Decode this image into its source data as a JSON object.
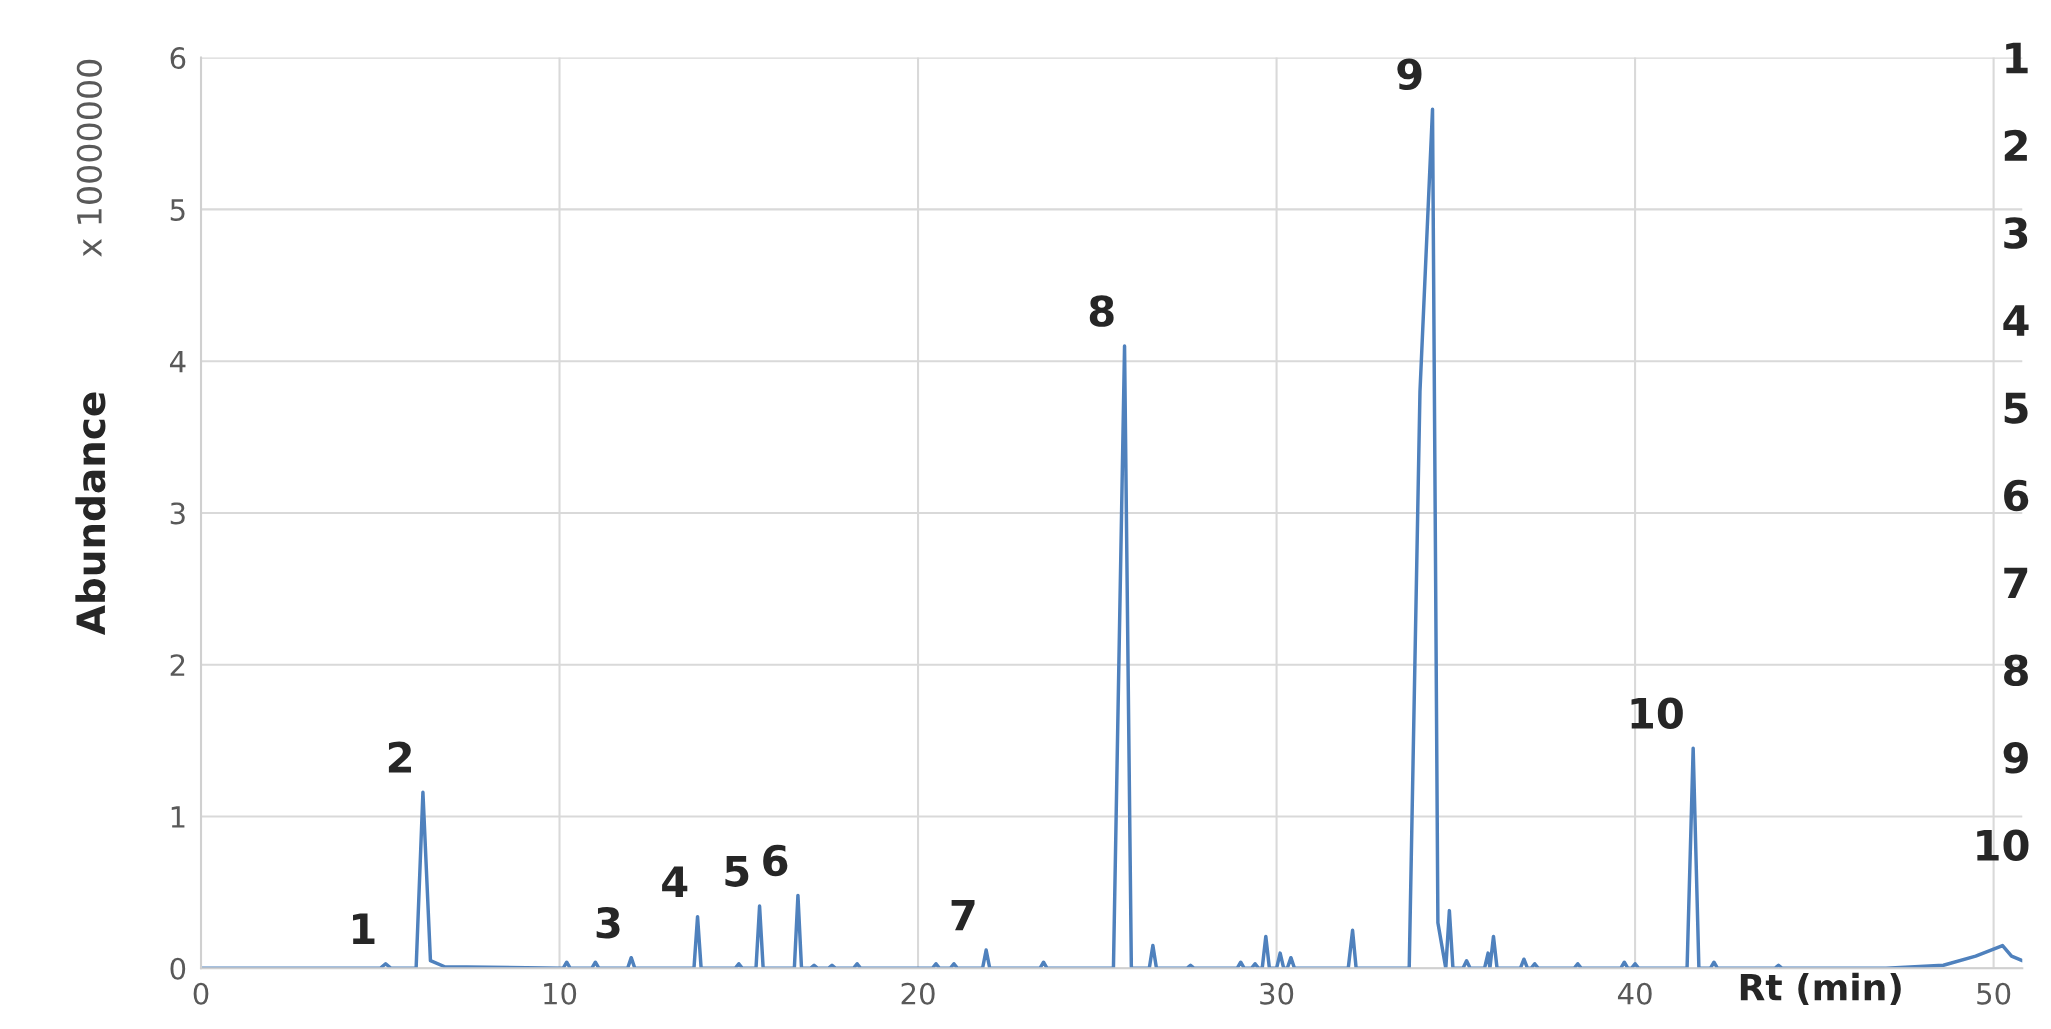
{
  "chart_data": {
    "type": "line",
    "xlabel": "Rt (min)",
    "ylabel": "Abundance",
    "xlim": [
      0,
      50.8
    ],
    "xticks": [
      0,
      10,
      20,
      30,
      40,
      50
    ],
    "ylim": [
      0,
      6
    ],
    "yticks": [
      0,
      1,
      2,
      3,
      4,
      5,
      6
    ],
    "grid": true,
    "line_style": "solid",
    "marker": "none",
    "series": [
      {
        "color": "#4f81bd",
        "x": [
          0,
          5.0,
          5.15,
          5.3,
          6.0,
          6.19,
          6.4,
          6.8,
          10.1,
          10.2,
          10.3,
          10.9,
          11.0,
          11.1,
          11.9,
          12.0,
          12.1,
          13.75,
          13.85,
          13.95,
          14.9,
          15.0,
          15.1,
          15.48,
          15.58,
          15.68,
          16.55,
          16.65,
          16.75,
          17.0,
          17.1,
          17.2,
          17.5,
          17.6,
          17.7,
          18.2,
          18.3,
          18.4,
          20.4,
          20.5,
          20.6,
          20.9,
          21.0,
          21.1,
          21.8,
          21.9,
          22.0,
          23.4,
          23.5,
          23.6,
          25.45,
          25.76,
          25.95,
          26.45,
          26.55,
          26.65,
          27.5,
          27.6,
          27.7,
          28.9,
          29.0,
          29.1,
          29.3,
          29.4,
          29.5,
          29.6,
          29.7,
          29.8,
          30.0,
          30.1,
          30.2,
          30.3,
          30.4,
          30.5,
          32.0,
          32.12,
          32.22,
          33.7,
          34.0,
          34.35,
          34.5,
          34.72,
          34.82,
          34.92,
          35.2,
          35.3,
          35.4,
          35.8,
          35.9,
          35.95,
          36.05,
          36.15,
          36.8,
          36.9,
          37.0,
          37.1,
          37.2,
          37.3,
          38.3,
          38.4,
          38.5,
          39.6,
          39.7,
          39.8,
          39.9,
          40.0,
          40.1,
          41.45,
          41.62,
          41.78,
          42.1,
          42.2,
          42.3,
          43.9,
          44.0,
          44.1,
          47.0,
          48.6,
          49.5,
          50.25,
          50.5,
          50.8
        ],
        "values": [
          0,
          0,
          0.03,
          0,
          0,
          1.16,
          0.05,
          0.01,
          0,
          0.04,
          0,
          0,
          0.04,
          0,
          0,
          0.07,
          0,
          0,
          0.34,
          0,
          0,
          0.03,
          0,
          0,
          0.41,
          0,
          0,
          0.48,
          0,
          0,
          0.02,
          0,
          0,
          0.02,
          0,
          0,
          0.03,
          0,
          0,
          0.03,
          0,
          0,
          0.03,
          0,
          0,
          0.12,
          0,
          0,
          0.04,
          0,
          0,
          4.1,
          0,
          0,
          0.15,
          0,
          0,
          0.02,
          0,
          0,
          0.04,
          0,
          0,
          0.03,
          0,
          0,
          0.21,
          0,
          0,
          0.1,
          0,
          0,
          0.07,
          0,
          0,
          0.25,
          0,
          0,
          3.8,
          5.66,
          0.3,
          0,
          0.38,
          0,
          0,
          0.05,
          0,
          0,
          0.1,
          0,
          0.21,
          0,
          0,
          0.06,
          0,
          0,
          0.03,
          0,
          0,
          0.03,
          0,
          0,
          0.04,
          0,
          0,
          0.03,
          0,
          0,
          1.45,
          0,
          0,
          0.04,
          0,
          0,
          0.02,
          0,
          0,
          0.02,
          0.08,
          0.15,
          0.08,
          0.05
        ]
      }
    ],
    "annotations": [
      "x 10000000",
      {
        "text": "1",
        "x": 5.15,
        "y": 0.03
      },
      {
        "text": "2",
        "x": 6.19,
        "y": 1.16
      },
      {
        "text": "3",
        "x": 12.0,
        "y": 0.07
      },
      {
        "text": "4",
        "x": 13.85,
        "y": 0.34
      },
      {
        "text": "5",
        "x": 15.58,
        "y": 0.41
      },
      {
        "text": "6",
        "x": 16.65,
        "y": 0.48
      },
      {
        "text": "7",
        "x": 21.9,
        "y": 0.12
      },
      {
        "text": "8",
        "x": 25.76,
        "y": 4.1
      },
      {
        "text": "9",
        "x": 34.35,
        "y": 5.66
      },
      {
        "text": "10",
        "x": 41.62,
        "y": 1.45
      },
      "1",
      "2",
      "3",
      "4",
      "5",
      "6",
      "7",
      "8",
      "9",
      "10"
    ]
  }
}
